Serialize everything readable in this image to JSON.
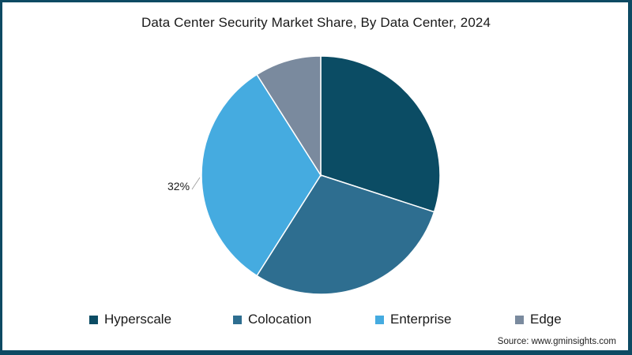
{
  "chart_data": {
    "type": "pie",
    "title": "Data Center Security Market Share, By Data Center, 2024",
    "categories": [
      "Hyperscale",
      "Colocation",
      "Enterprise",
      "Edge"
    ],
    "values": [
      30,
      29,
      32,
      9
    ],
    "colors": [
      "#0B4C64",
      "#2E6E90",
      "#45ABE0",
      "#7A8A9E"
    ],
    "labeled_values": [
      {
        "category": "Enterprise",
        "label": "32%"
      }
    ],
    "start_angle_deg": 0,
    "direction": "clockwise",
    "legend_position": "bottom",
    "source": "Source: www.gminsights.com"
  },
  "title": "Data Center Security Market Share, By Data Center, 2024",
  "slice_label": "32%",
  "legend": [
    {
      "label": "Hyperscale",
      "color": "#0B4C64"
    },
    {
      "label": "Colocation",
      "color": "#2E6E90"
    },
    {
      "label": "Enterprise",
      "color": "#45ABE0"
    },
    {
      "label": "Edge",
      "color": "#7A8A9E"
    }
  ],
  "source": "Source: www.gminsights.com",
  "colors": {
    "border": "#0D4A63",
    "background": "#ffffff"
  }
}
